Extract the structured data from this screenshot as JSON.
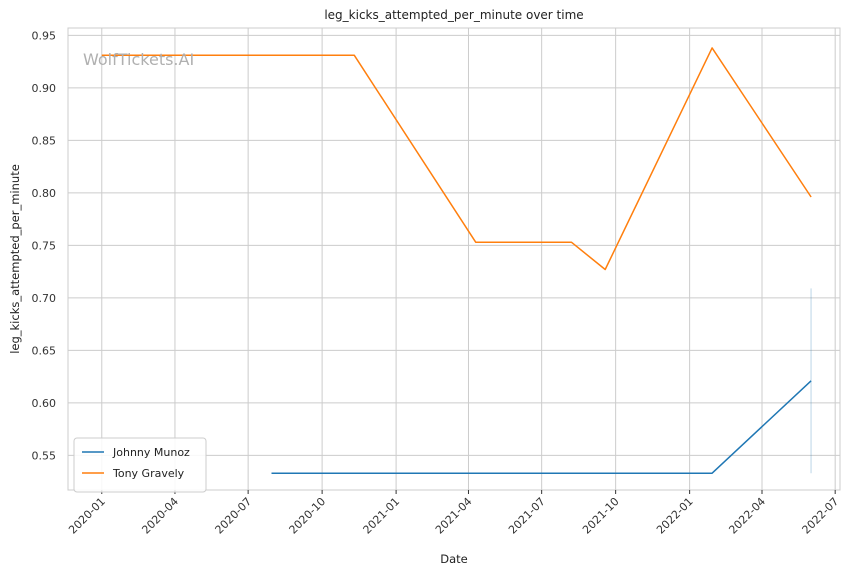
{
  "chart_data": {
    "type": "line",
    "title": "leg_kicks_attempted_per_minute over time",
    "xlabel": "Date",
    "ylabel": "leg_kicks_attempted_per_minute",
    "watermark": "WolfTickets.AI",
    "x_axis": "date",
    "xlim": [
      "2019-11-20",
      "2022-07-07"
    ],
    "ylim": [
      0.517,
      0.957
    ],
    "x_ticks": [
      "2020-01",
      "2020-04",
      "2020-07",
      "2020-10",
      "2021-01",
      "2021-04",
      "2021-07",
      "2021-10",
      "2022-01",
      "2022-04",
      "2022-07"
    ],
    "y_ticks": [
      "0.55",
      "0.60",
      "0.65",
      "0.70",
      "0.75",
      "0.80",
      "0.85",
      "0.90",
      "0.95"
    ],
    "grid": true,
    "legend_position": "lower-left",
    "series": [
      {
        "name": "Johnny Munoz",
        "color": "#1f77b4",
        "points": [
          {
            "x": "2020-07-30",
            "y": 0.533
          },
          {
            "x": "2022-01-29",
            "y": 0.533
          },
          {
            "x": "2022-06-01",
            "y": 0.621
          }
        ],
        "error_band": {
          "x": "2022-06-01",
          "low": 0.533,
          "high": 0.709
        }
      },
      {
        "name": "Tony Gravely",
        "color": "#ff7f0e",
        "points": [
          {
            "x": "2020-01-01",
            "y": 0.931
          },
          {
            "x": "2020-11-10",
            "y": 0.931
          },
          {
            "x": "2021-04-10",
            "y": 0.753
          },
          {
            "x": "2021-08-07",
            "y": 0.753
          },
          {
            "x": "2021-09-18",
            "y": 0.727
          },
          {
            "x": "2022-01-29",
            "y": 0.938
          },
          {
            "x": "2022-06-01",
            "y": 0.796
          }
        ]
      }
    ]
  }
}
